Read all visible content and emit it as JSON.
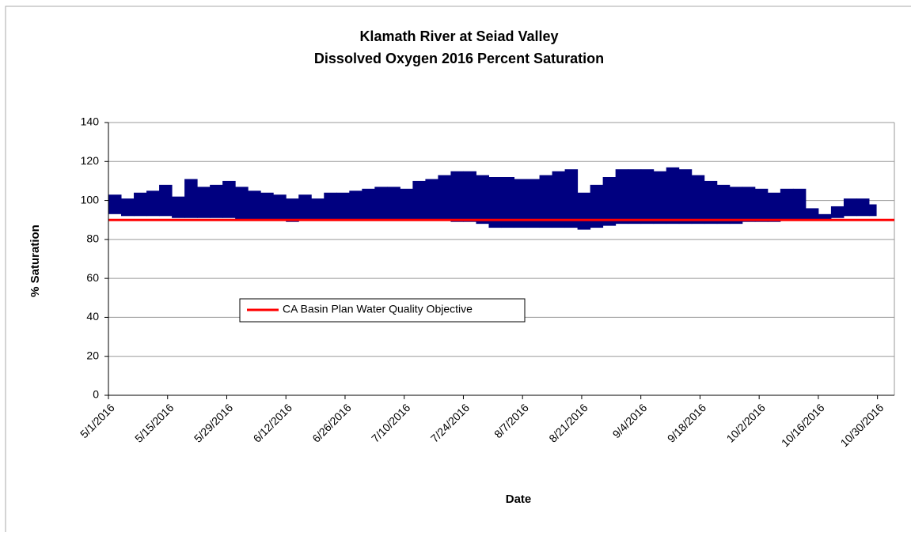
{
  "chart_data": {
    "type": "range",
    "title": "Klamath River at Seiad Valley",
    "subtitle": "Dissolved Oxygen 2016 Percent Saturation",
    "x_label": "Date",
    "y_label": "% Saturation",
    "ylim": [
      0,
      140
    ],
    "yticks": [
      0,
      20,
      40,
      60,
      80,
      100,
      120,
      140
    ],
    "xlim": [
      "2016-05-01",
      "2016-11-03"
    ],
    "xticks": [
      {
        "value": "2016-05-01",
        "label": "5/1/2016"
      },
      {
        "value": "2016-05-15",
        "label": "5/15/2016"
      },
      {
        "value": "2016-05-29",
        "label": "5/29/2016"
      },
      {
        "value": "2016-06-12",
        "label": "6/12/2016"
      },
      {
        "value": "2016-06-26",
        "label": "6/26/2016"
      },
      {
        "value": "2016-07-10",
        "label": "7/10/2016"
      },
      {
        "value": "2016-07-24",
        "label": "7/24/2016"
      },
      {
        "value": "2016-08-07",
        "label": "8/7/2016"
      },
      {
        "value": "2016-08-21",
        "label": "8/21/2016"
      },
      {
        "value": "2016-09-04",
        "label": "9/4/2016"
      },
      {
        "value": "2016-09-18",
        "label": "9/18/2016"
      },
      {
        "value": "2016-10-02",
        "label": "10/2/2016"
      },
      {
        "value": "2016-10-16",
        "label": "10/16/2016"
      },
      {
        "value": "2016-10-30",
        "label": "10/30/2016"
      }
    ],
    "grid": true,
    "band": {
      "color": "#000080",
      "x": [
        "2016-05-01",
        "2016-05-04",
        "2016-05-07",
        "2016-05-10",
        "2016-05-13",
        "2016-05-16",
        "2016-05-19",
        "2016-05-22",
        "2016-05-25",
        "2016-05-28",
        "2016-05-31",
        "2016-06-03",
        "2016-06-06",
        "2016-06-09",
        "2016-06-12",
        "2016-06-15",
        "2016-06-18",
        "2016-06-21",
        "2016-06-24",
        "2016-06-27",
        "2016-06-30",
        "2016-07-03",
        "2016-07-06",
        "2016-07-09",
        "2016-07-12",
        "2016-07-15",
        "2016-07-18",
        "2016-07-21",
        "2016-07-24",
        "2016-07-27",
        "2016-07-30",
        "2016-08-02",
        "2016-08-05",
        "2016-08-08",
        "2016-08-11",
        "2016-08-14",
        "2016-08-17",
        "2016-08-20",
        "2016-08-23",
        "2016-08-26",
        "2016-08-29",
        "2016-09-01",
        "2016-09-04",
        "2016-09-07",
        "2016-09-10",
        "2016-09-13",
        "2016-09-16",
        "2016-09-19",
        "2016-09-22",
        "2016-09-25",
        "2016-09-28",
        "2016-10-01",
        "2016-10-04",
        "2016-10-07",
        "2016-10-10",
        "2016-10-13",
        "2016-10-16",
        "2016-10-19",
        "2016-10-22",
        "2016-10-25",
        "2016-10-28"
      ],
      "high": [
        103,
        101,
        104,
        105,
        108,
        102,
        111,
        107,
        108,
        110,
        107,
        105,
        104,
        103,
        101,
        103,
        101,
        104,
        104,
        105,
        106,
        107,
        107,
        106,
        110,
        111,
        113,
        115,
        115,
        113,
        112,
        112,
        111,
        111,
        113,
        115,
        116,
        104,
        108,
        112,
        116,
        116,
        116,
        115,
        117,
        116,
        113,
        110,
        108,
        107,
        107,
        106,
        104,
        106,
        106,
        96,
        93,
        97,
        101,
        101,
        98
      ],
      "low": [
        93,
        92,
        92,
        92,
        92,
        91,
        91,
        91,
        91,
        91,
        90,
        90,
        90,
        90,
        89,
        90,
        90,
        90,
        90,
        90,
        90,
        90,
        90,
        90,
        90,
        90,
        90,
        89,
        89,
        88,
        86,
        86,
        86,
        86,
        86,
        86,
        86,
        85,
        86,
        87,
        88,
        88,
        88,
        88,
        88,
        88,
        88,
        88,
        88,
        88,
        89,
        89,
        89,
        90,
        90,
        90,
        90,
        91,
        92,
        92,
        92
      ]
    },
    "objective": {
      "name": "CA Basin Plan Water Quality Objective",
      "color": "#ff0000",
      "value": 90
    }
  }
}
